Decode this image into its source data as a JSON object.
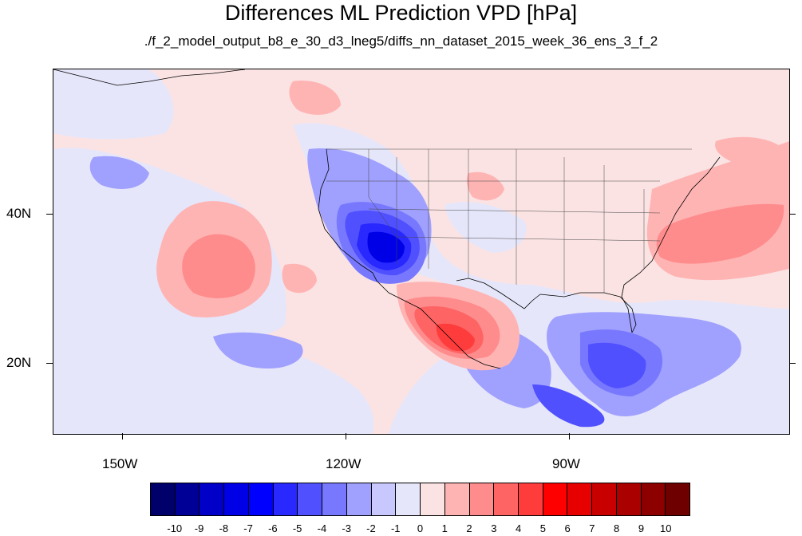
{
  "title": "Differences ML Prediction VPD [hPa]",
  "subtitle": "./f_2_model_output_b8_e_30_d3_lneg5/diffs_nn_dataset_2015_week_36_ens_3_f_2",
  "map": {
    "lat_labels": [
      {
        "text": "40N",
        "lat": 40
      },
      {
        "text": "20N",
        "lat": 20
      }
    ],
    "lon_labels": [
      {
        "text": "150W",
        "lon": -150
      },
      {
        "text": "120W",
        "lon": -120
      },
      {
        "text": "90W",
        "lon": -90
      }
    ],
    "extent": {
      "lon_min": -160,
      "lon_max": -61,
      "lat_min": 11,
      "lat_max": 60
    }
  },
  "colorbar": {
    "colors": [
      "#00006a",
      "#000096",
      "#0000c8",
      "#0000e6",
      "#0000ff",
      "#2828ff",
      "#5050ff",
      "#7878ff",
      "#a0a0ff",
      "#c8c8ff",
      "#e6e6fa",
      "#fbe3e3",
      "#ffb4b4",
      "#ff8c8c",
      "#ff6464",
      "#ff3c3c",
      "#ff0000",
      "#e60000",
      "#c80000",
      "#aa0000",
      "#8c0000",
      "#6e0000"
    ],
    "labels": [
      "-10",
      "-9",
      "-8",
      "-7",
      "-6",
      "-5",
      "-4",
      "-3",
      "-2",
      "-1",
      "0",
      "1",
      "2",
      "3",
      "4",
      "5",
      "6",
      "7",
      "8",
      "9",
      "10"
    ]
  }
}
